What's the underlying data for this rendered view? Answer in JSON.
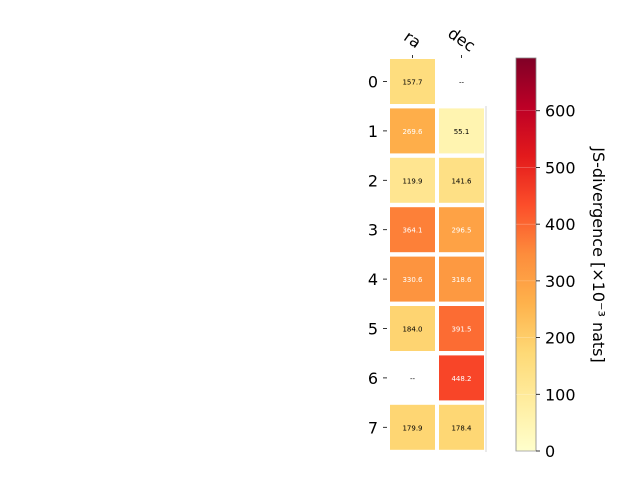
{
  "chart_data": {
    "type": "heatmap",
    "title": "",
    "columns": [
      "ra",
      "dec"
    ],
    "rows": [
      "0",
      "1",
      "2",
      "3",
      "4",
      "5",
      "6",
      "7"
    ],
    "values": [
      [
        157.7,
        null
      ],
      [
        269.6,
        55.1
      ],
      [
        119.9,
        141.6
      ],
      [
        364.1,
        296.5
      ],
      [
        330.6,
        318.6
      ],
      [
        184.0,
        391.5
      ],
      [
        null,
        448.2
      ],
      [
        179.9,
        178.4
      ]
    ],
    "missing_label": "--",
    "colorbar": {
      "label": "JS-divergence [×10⁻³ nats]",
      "min": 0,
      "max": 693,
      "ticks": [
        0,
        100,
        200,
        300,
        400,
        500,
        600
      ],
      "colormap": "YlOrRd"
    }
  }
}
